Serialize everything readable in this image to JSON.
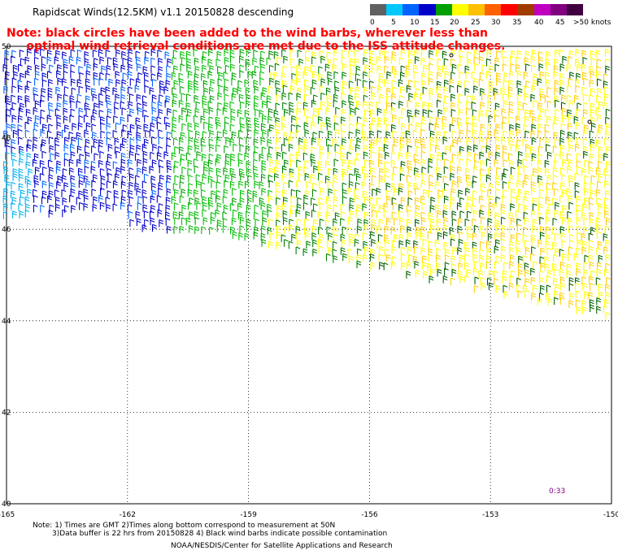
{
  "title": "Rapidscat Winds(12.5KM) v1.1 20150828 descending",
  "note_line1": "Note: black circles have been added to the wind barbs, wherever less than",
  "note_line2": "     optimal wind retrieval conditions are met due to the ISS attitude changes.",
  "colorbar": {
    "labels": [
      "0",
      "5",
      "10",
      "15",
      "20",
      "25",
      "30",
      "35",
      "40",
      "45",
      ">50 knots"
    ],
    "colors": [
      "#606060",
      "#00c8ff",
      "#0064ff",
      "#0000c8",
      "#00a000",
      "#ffff00",
      "#ffc000",
      "#ff6000",
      "#ff0000",
      "#a03c00",
      "#c000c0",
      "#800080",
      "#400040"
    ]
  },
  "map": {
    "lat_labels": [
      "50",
      "48",
      "46",
      "44",
      "42",
      "40"
    ],
    "lon_labels": [
      "-165",
      "-162",
      "-159",
      "-156",
      "-153",
      "-150"
    ]
  },
  "time_label": "0:33",
  "footer": {
    "line1": "Note: 1) Times are GMT 2)Times along bottom correspond to measurement at 50N",
    "line2": "3)Data buffer is 22 hrs from 20150828 4) Black wind barbs indicate possible contamination",
    "line3": "NOAA/NESDIS/Center for Satellite Applications and Research"
  }
}
